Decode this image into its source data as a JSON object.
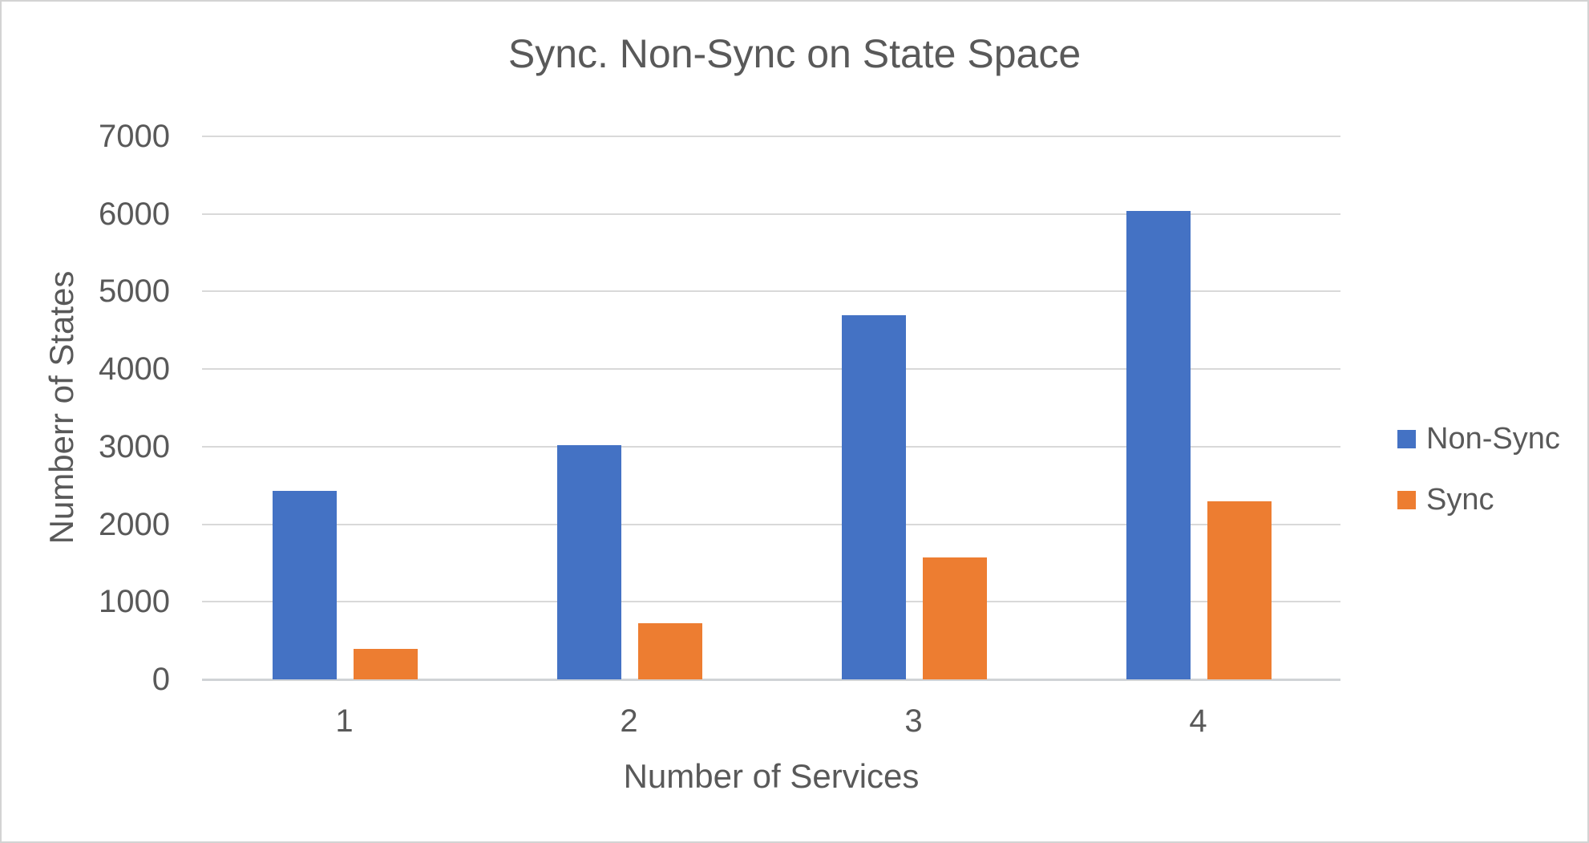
{
  "window": {
    "background": "#ffffff",
    "border_color": "#d3d3d3",
    "text_color": "#595959",
    "gridline_color": "#d9d9d9"
  },
  "chart_data": {
    "type": "bar",
    "title": "Sync. Non-Sync on State Space",
    "xlabel": "Number of Services",
    "ylabel": "Numberr of States",
    "categories": [
      "1",
      "2",
      "3",
      "4"
    ],
    "series": [
      {
        "name": "Non-Sync",
        "color": "#4472C4",
        "values": [
          2430,
          3020,
          4690,
          6040
        ]
      },
      {
        "name": "Sync",
        "color": "#ED7D31",
        "values": [
          390,
          720,
          1570,
          2300
        ]
      }
    ],
    "ylim": [
      0,
      7000
    ],
    "ytick_interval": 1000,
    "ytick_labels": [
      "0",
      "1000",
      "2000",
      "3000",
      "4000",
      "5000",
      "6000",
      "7000"
    ],
    "grid": true,
    "legend_position": "right"
  }
}
